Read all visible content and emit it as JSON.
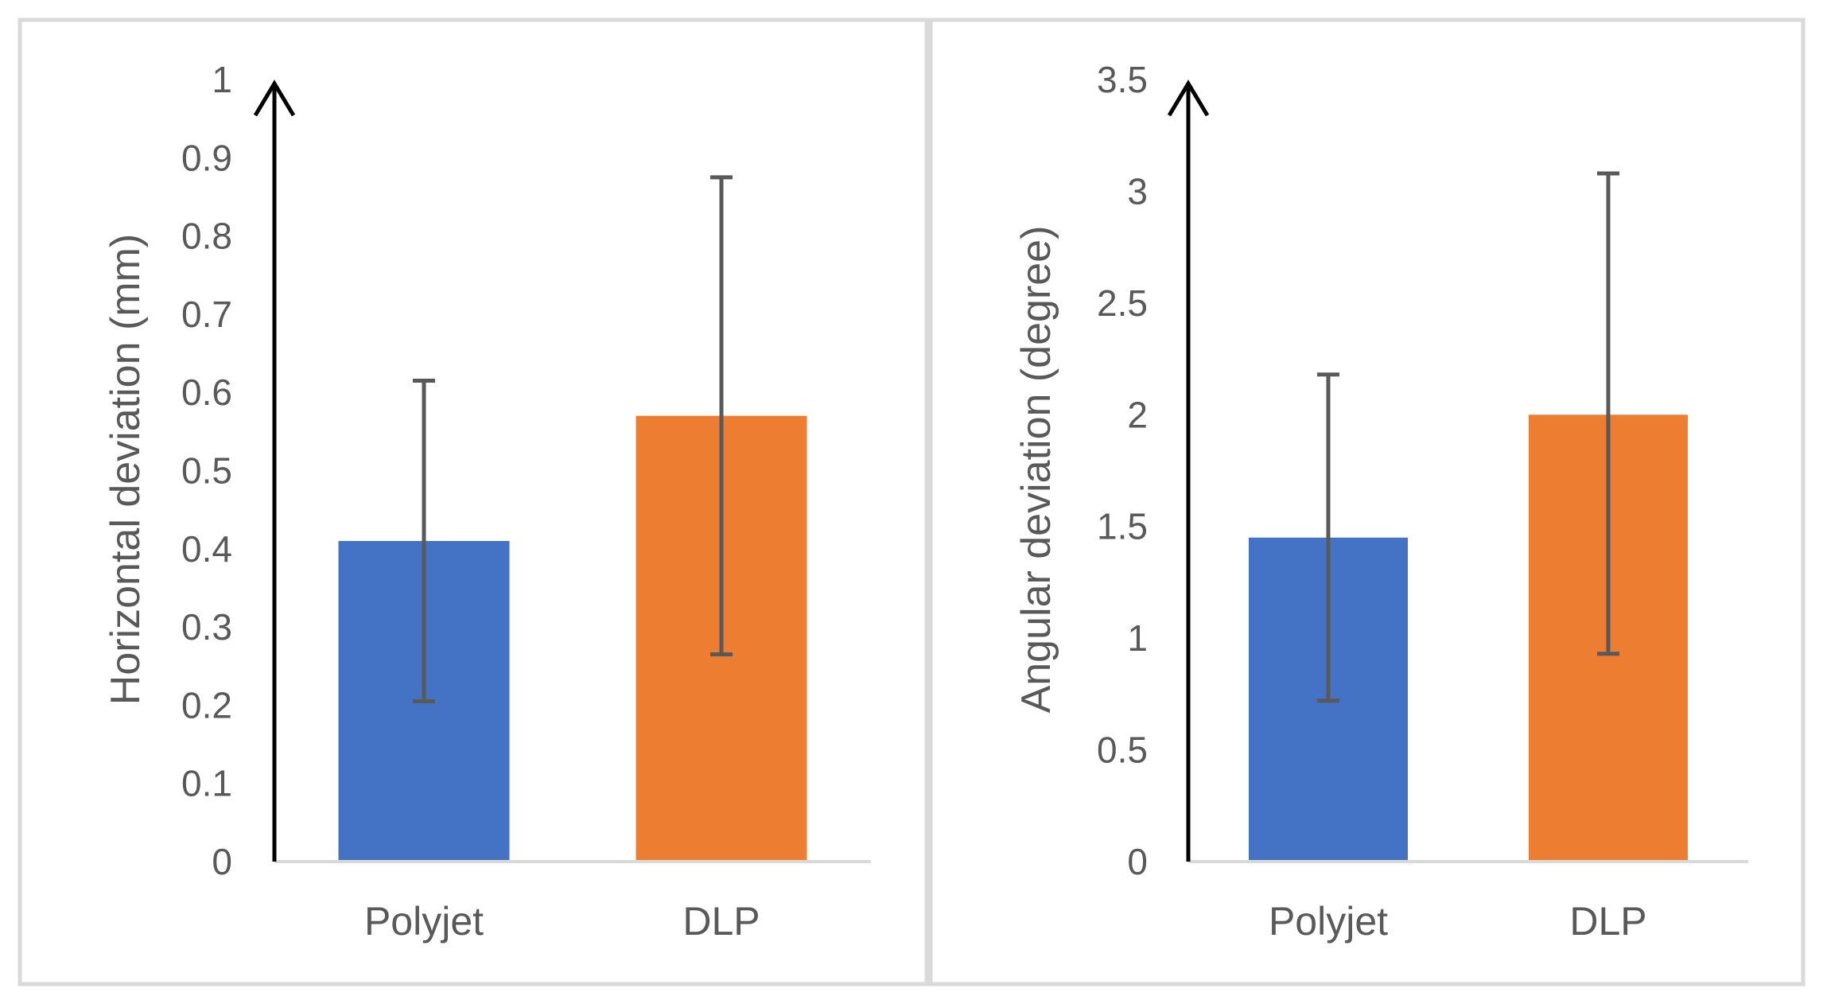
{
  "chart_data": [
    {
      "type": "bar",
      "categories": [
        "Polyjet",
        "DLP"
      ],
      "values": [
        0.41,
        0.57
      ],
      "error_low": [
        0.205,
        0.265
      ],
      "error_high": [
        0.615,
        0.875
      ],
      "colors": [
        "#4472C4",
        "#ED7D31"
      ],
      "title": "",
      "xlabel": "",
      "ylabel": "Horizontal deviation (mm)",
      "ylim": [
        0,
        1
      ],
      "yticks": [
        "0",
        "0.1",
        "0.2",
        "0.3",
        "0.4",
        "0.5",
        "0.6",
        "0.7",
        "0.8",
        "0.9",
        "1"
      ],
      "grid": false,
      "legend": "none"
    },
    {
      "type": "bar",
      "categories": [
        "Polyjet",
        "DLP"
      ],
      "values": [
        1.45,
        2.0
      ],
      "error_low": [
        0.72,
        0.93
      ],
      "error_high": [
        2.18,
        3.08
      ],
      "colors": [
        "#4472C4",
        "#ED7D31"
      ],
      "title": "",
      "xlabel": "",
      "ylabel": "Angular deviation (degree)",
      "ylim": [
        0,
        3.5
      ],
      "yticks": [
        "0",
        "0.5",
        "1",
        "1.5",
        "2",
        "2.5",
        "3",
        "3.5"
      ],
      "grid": false,
      "legend": "none"
    }
  ]
}
